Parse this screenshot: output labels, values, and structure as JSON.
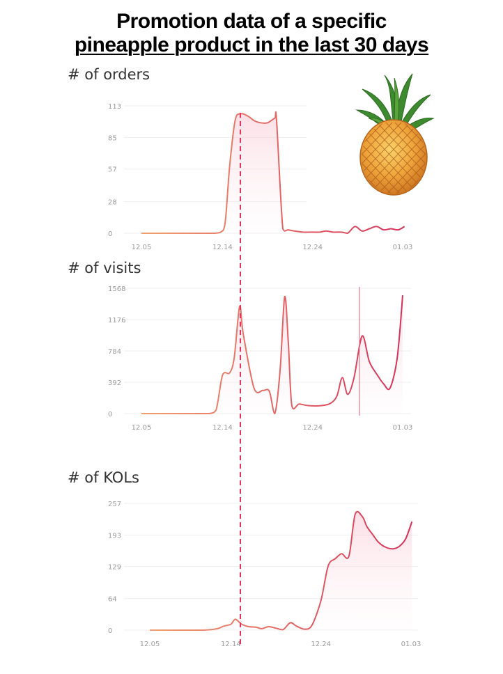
{
  "title_line1": "Promotion data of a specific",
  "title_line2": "pineapple product  in the last 30 days",
  "colors": {
    "line_start": "#f0a070",
    "line_end": "#d6305a",
    "grid": "#efefef",
    "marker": "#e8345c",
    "tick_text": "#9a9a9a"
  },
  "chart_data": [
    {
      "type": "area",
      "title": "# of orders",
      "x_tick_labels": [
        "12.05",
        "12.14",
        "12.24",
        "01.03"
      ],
      "x_tick_days": [
        0,
        9,
        19,
        29
      ],
      "y_ticks": [
        0,
        28,
        57,
        85,
        113
      ],
      "ylim": [
        0,
        113
      ],
      "grid": true,
      "series": [
        {
          "x": [
            0,
            1,
            2,
            3,
            4,
            5,
            6,
            7,
            8,
            8.8,
            9.3,
            9.8,
            10.4,
            11,
            11.8,
            12.5,
            13.2,
            14,
            14.8,
            15,
            15.7,
            16.3,
            17,
            18,
            19,
            19.8,
            20.5,
            21.3,
            22.2,
            22.9,
            23.7,
            24.5,
            25.3,
            26.1,
            26.9,
            27.7,
            28.5,
            29.2
          ],
          "y": [
            0,
            0,
            0,
            0,
            0,
            0,
            0,
            0,
            0,
            1,
            10,
            60,
            100,
            106,
            104,
            100,
            98,
            98,
            102,
            100,
            4,
            3,
            2,
            1,
            1,
            1,
            2,
            1,
            1,
            0,
            6,
            2,
            4,
            6,
            3,
            4,
            3,
            6
          ]
        }
      ]
    },
    {
      "type": "area",
      "title": "# of visits",
      "x_tick_labels": [
        "12.05",
        "12.14",
        "12.24",
        "01.03"
      ],
      "x_tick_days": [
        0,
        9,
        19,
        29
      ],
      "y_ticks": [
        0,
        392,
        784,
        1176,
        1568
      ],
      "ylim": [
        0,
        1568
      ],
      "grid": true,
      "series": [
        {
          "x": [
            0,
            2,
            4,
            6,
            7.5,
            8.3,
            9,
            9.8,
            10.3,
            10.9,
            11.3,
            12.5,
            13.5,
            14.2,
            14.8,
            15.4,
            15.9,
            16.3,
            16.7,
            17.5,
            18.5,
            20,
            21,
            21.7,
            22.3,
            22.9,
            23.6,
            24.5,
            25.3,
            26.2,
            26.9,
            27.6,
            28.4,
            29
          ],
          "y": [
            0,
            0,
            0,
            0,
            0,
            50,
            480,
            510,
            700,
            1340,
            1000,
            320,
            290,
            280,
            0,
            550,
            1460,
            900,
            100,
            120,
            100,
            100,
            130,
            220,
            450,
            240,
            450,
            970,
            650,
            480,
            370,
            320,
            700,
            1480
          ]
        }
      ],
      "marker_day": 24.2
    },
    {
      "type": "area",
      "title": "# of KOLs",
      "x_tick_labels": [
        "12.05",
        "12.14",
        "12.24",
        "01.03"
      ],
      "x_tick_days": [
        0,
        9,
        19,
        29
      ],
      "y_ticks": [
        0,
        64,
        129,
        193,
        257
      ],
      "ylim": [
        0,
        257
      ],
      "grid": true,
      "series": [
        {
          "x": [
            0,
            2,
            4,
            6,
            7.5,
            8.2,
            9,
            9.5,
            10.2,
            11,
            11.8,
            12.4,
            13.2,
            14,
            14.8,
            15.6,
            16.3,
            17.2,
            18,
            19,
            19.8,
            20.6,
            21.3,
            22.1,
            22.8,
            23.6,
            24.1,
            24.7,
            25.4,
            26.2,
            27,
            27.7,
            28.4,
            29.1
          ],
          "y": [
            0,
            0,
            0,
            0,
            3,
            8,
            12,
            22,
            12,
            7,
            6,
            3,
            7,
            4,
            1,
            15,
            8,
            2,
            10,
            60,
            130,
            145,
            155,
            150,
            235,
            230,
            210,
            195,
            178,
            168,
            165,
            170,
            185,
            220
          ]
        }
      ]
    }
  ]
}
